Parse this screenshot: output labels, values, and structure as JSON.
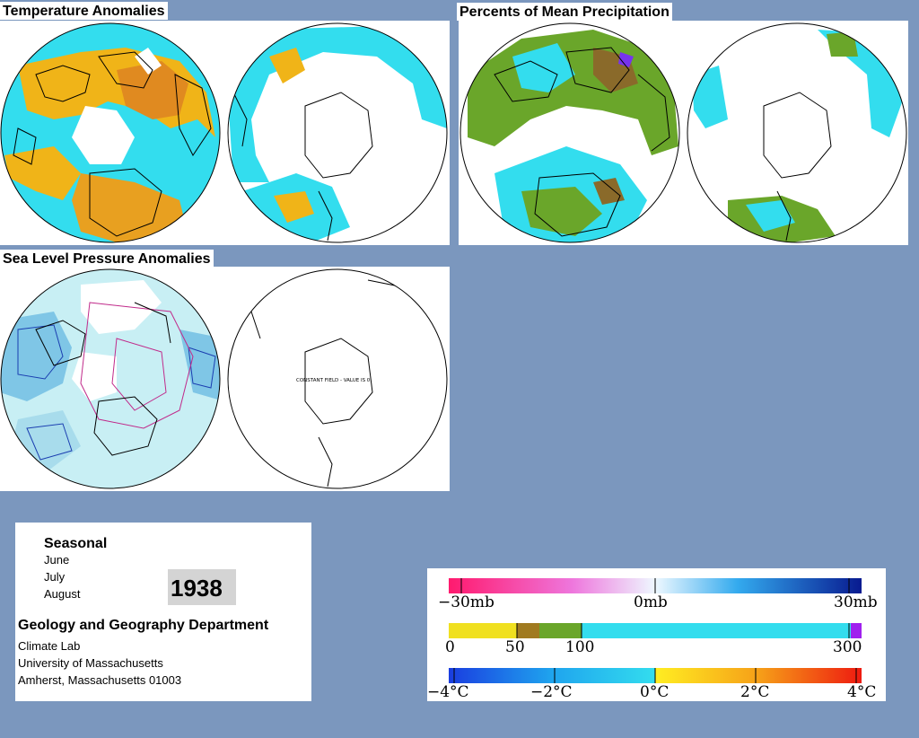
{
  "panels": {
    "temperature": {
      "title": "Temperature Anomalies"
    },
    "precipitation": {
      "title": "Percents of Mean Precipitation"
    },
    "pressure": {
      "title": "Sea Level Pressure Anomalies",
      "map_note": "CONSTANT FIELD - VALUE IS 0"
    }
  },
  "info": {
    "heading": "Seasonal",
    "months": [
      "June",
      "July",
      "August"
    ],
    "year": "1938",
    "department": "Geology and Geography Department",
    "lines": [
      "Climate Lab",
      "University of Massachusetts",
      "Amherst, Massachusetts 01003"
    ]
  },
  "legends": {
    "pressure": {
      "labels": [
        "−30mb",
        "0mb",
        "30mb"
      ]
    },
    "precipitation": {
      "labels": [
        "0",
        "50",
        "100",
        "300"
      ]
    },
    "temperature": {
      "labels": [
        "−4°C",
        "−2°C",
        "0°C",
        "2°C",
        "4°C"
      ]
    }
  },
  "colors": {
    "background": "#7b97be",
    "ocean_anomaly": "#33ddee",
    "warm_anomaly": "#f0b418",
    "dry": "#8a9a2a",
    "low_pressure": "#1a3db0",
    "high_pressure": "#c02a8a"
  }
}
